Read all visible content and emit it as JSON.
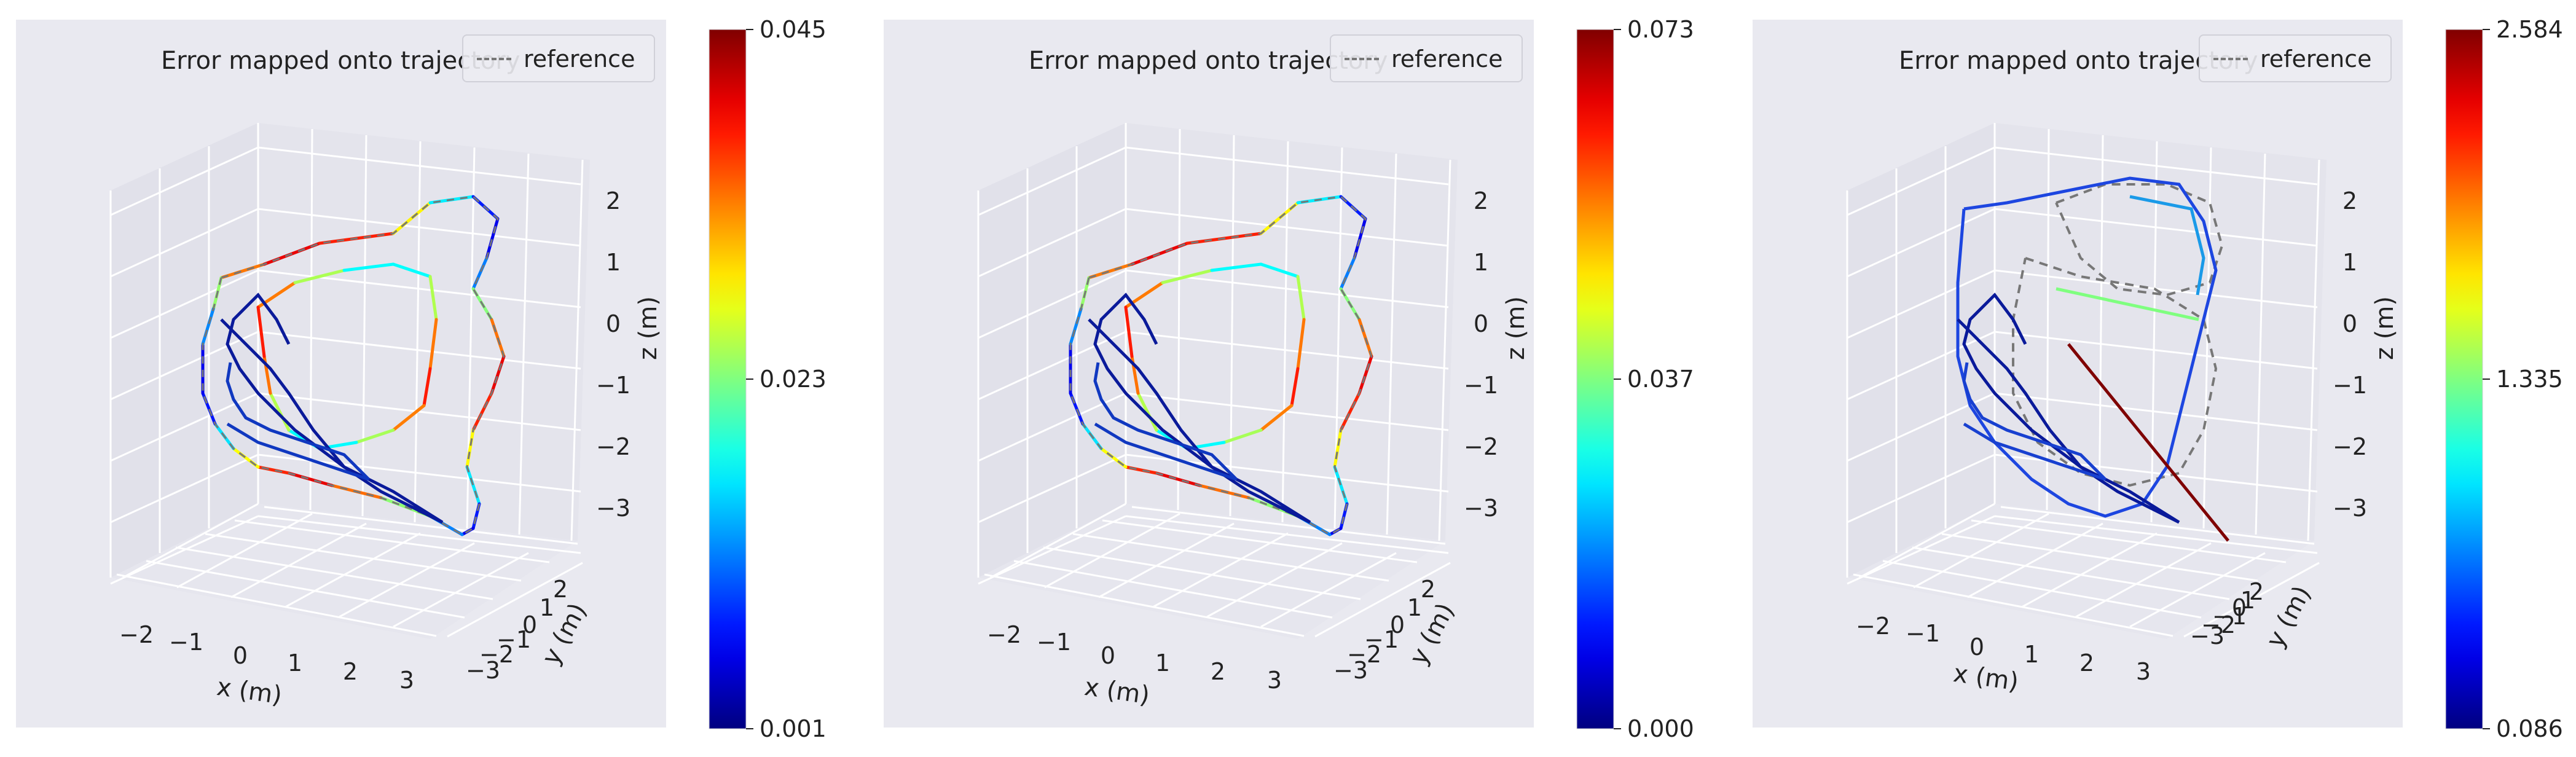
{
  "chart_data": [
    {
      "type": "line",
      "title": "Error mapped onto trajectory",
      "legend": [
        "reference"
      ],
      "xlabel": "x (m)",
      "ylabel": "y (m)",
      "zlabel": "z (m)",
      "x_ticks": [
        "−2",
        "−1",
        "0",
        "1",
        "2",
        "3"
      ],
      "y_ticks": [
        "−3",
        "−2",
        "−1",
        "0",
        "1",
        "2"
      ],
      "z_ticks": [
        "2",
        "1",
        "0",
        "−1",
        "−2",
        "−3"
      ],
      "colorbar": {
        "min": "0.001",
        "mid": "0.023",
        "max": "0.045",
        "colormap": "jet"
      }
    },
    {
      "type": "line",
      "title": "Error mapped onto trajectory",
      "legend": [
        "reference"
      ],
      "xlabel": "x (m)",
      "ylabel": "y (m)",
      "zlabel": "z (m)",
      "x_ticks": [
        "−2",
        "−1",
        "0",
        "1",
        "2",
        "3"
      ],
      "y_ticks": [
        "−3",
        "−2",
        "−1",
        "0",
        "1",
        "2"
      ],
      "z_ticks": [
        "2",
        "1",
        "0",
        "−1",
        "−2",
        "−3"
      ],
      "colorbar": {
        "min": "0.000",
        "mid": "0.037",
        "max": "0.073",
        "colormap": "jet"
      }
    },
    {
      "type": "line",
      "title": "Error mapped onto trajectory",
      "legend": [
        "reference"
      ],
      "xlabel": "x (m)",
      "ylabel": "y (m)",
      "zlabel": "z (m)",
      "x_ticks": [
        "−2",
        "−1",
        "0",
        "1",
        "2",
        "3"
      ],
      "y_ticks": [
        "−3",
        "−2",
        "−1",
        "0",
        "1",
        "2"
      ],
      "z_ticks": [
        "2",
        "1",
        "0",
        "−1",
        "−2",
        "−3"
      ],
      "colorbar": {
        "min": "0.086",
        "mid": "1.335",
        "max": "2.584",
        "colormap": "jet"
      }
    }
  ],
  "colors": {
    "pane_background": "#e9e9f0",
    "grid": "#ffffff",
    "reference_line": "#777777",
    "jet_low": "#00007f",
    "jet_mid": "#7fff7f",
    "jet_high": "#7f0000"
  }
}
